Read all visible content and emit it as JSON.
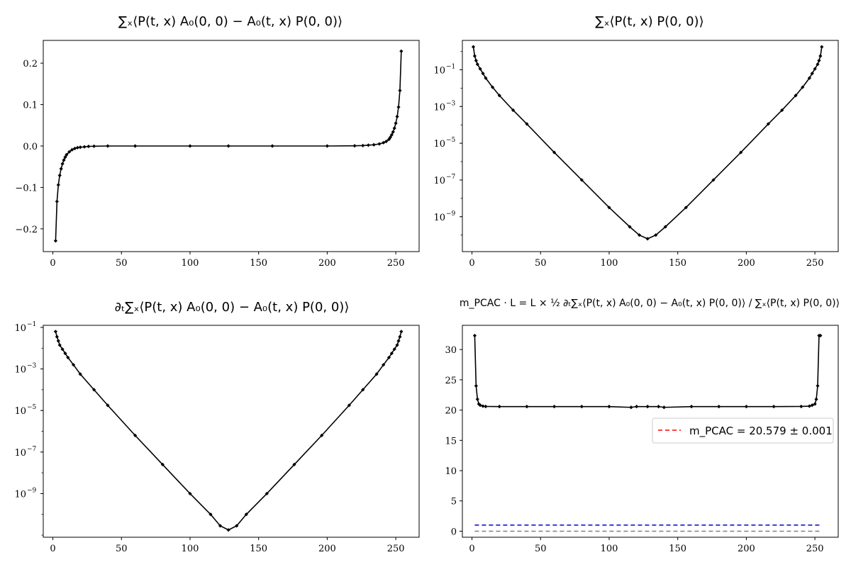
{
  "chart_data": [
    {
      "type": "line",
      "title": "∑ₓ⟨P(t, x) A₀(0, 0) − A₀(t, x) P(0, 0)⟩",
      "xlim": [
        -7,
        267
      ],
      "ylim": [
        -0.255,
        0.255
      ],
      "yscale": "linear",
      "xticks": [
        0,
        50,
        100,
        150,
        200,
        250
      ],
      "yticks": [
        -0.2,
        -0.1,
        0.0,
        0.1,
        0.2
      ],
      "ytick_labels": [
        "−0.2",
        "−0.1",
        "0.0",
        "0.1",
        "0.2"
      ],
      "series": [
        {
          "color": "#000000",
          "marker": "diamond",
          "x": [
            2,
            3,
            4,
            5,
            6,
            7,
            8,
            9,
            10,
            12,
            14,
            16,
            18,
            20,
            23,
            26,
            30,
            40,
            60,
            100,
            128,
            160,
            200,
            220,
            226,
            230,
            234,
            238,
            241,
            243,
            245,
            246,
            247,
            248,
            249,
            250,
            251,
            252,
            253,
            254
          ],
          "values": [
            -0.229,
            -0.134,
            -0.094,
            -0.071,
            -0.055,
            -0.043,
            -0.034,
            -0.027,
            -0.021,
            -0.014,
            -0.009,
            -0.006,
            -0.004,
            -0.003,
            -0.002,
            -0.001,
            -0.0005,
            0,
            0,
            0,
            0,
            0,
            0,
            0.0005,
            0.001,
            0.002,
            0.003,
            0.005,
            0.008,
            0.011,
            0.016,
            0.021,
            0.027,
            0.034,
            0.043,
            0.055,
            0.071,
            0.094,
            0.134,
            0.229
          ]
        }
      ]
    },
    {
      "type": "line",
      "title": "∑ₓ⟨P(t, x) P(0, 0)⟩",
      "xlim": [
        -7,
        267
      ],
      "ylim_log10": [
        -10.9,
        0.6
      ],
      "yscale": "log",
      "xticks": [
        0,
        50,
        100,
        150,
        200,
        250
      ],
      "yticks_exp": [
        -9,
        -7,
        -5,
        -3,
        -1
      ],
      "series": [
        {
          "color": "#000000",
          "marker": "diamond",
          "x": [
            1,
            2,
            3,
            4,
            6,
            8,
            10,
            15,
            20,
            30,
            40,
            60,
            80,
            100,
            115,
            122,
            128,
            134,
            141,
            156,
            176,
            196,
            216,
            226,
            236,
            241,
            246,
            248,
            250,
            252,
            253,
            254,
            255
          ],
          "values_log10": [
            0.25,
            -0.25,
            -0.5,
            -0.7,
            -0.95,
            -1.2,
            -1.45,
            -1.95,
            -2.4,
            -3.2,
            -3.95,
            -5.5,
            -7.0,
            -8.5,
            -9.55,
            -10.0,
            -10.2,
            -10.0,
            -9.55,
            -8.5,
            -7.0,
            -5.5,
            -3.95,
            -3.2,
            -2.4,
            -1.95,
            -1.45,
            -1.2,
            -0.95,
            -0.7,
            -0.5,
            -0.25,
            0.25
          ]
        }
      ]
    },
    {
      "type": "line",
      "title": "∂ₜ∑ₓ⟨P(t, x) A₀(0, 0) − A₀(t, x) P(0, 0)⟩",
      "xlim": [
        -7,
        267
      ],
      "ylim_log10": [
        -11.1,
        -0.9
      ],
      "yscale": "log",
      "xticks": [
        0,
        50,
        100,
        150,
        200,
        250
      ],
      "yticks_exp": [
        -9,
        -7,
        -5,
        -3,
        -1
      ],
      "series": [
        {
          "color": "#000000",
          "marker": "diamond",
          "x": [
            2,
            3,
            4,
            5,
            7,
            9,
            11,
            15,
            20,
            30,
            40,
            60,
            80,
            100,
            115,
            122,
            128,
            134,
            141,
            156,
            176,
            196,
            216,
            226,
            236,
            241,
            245,
            247,
            249,
            251,
            252,
            253,
            254
          ],
          "values_log10": [
            -1.2,
            -1.45,
            -1.65,
            -1.85,
            -2.05,
            -2.25,
            -2.45,
            -2.8,
            -3.25,
            -4.0,
            -4.75,
            -6.2,
            -7.6,
            -9.0,
            -10.0,
            -10.55,
            -10.75,
            -10.55,
            -10.0,
            -9.0,
            -7.6,
            -6.2,
            -4.75,
            -4.0,
            -3.25,
            -2.8,
            -2.45,
            -2.25,
            -2.05,
            -1.85,
            -1.65,
            -1.45,
            -1.2
          ]
        }
      ]
    },
    {
      "type": "line",
      "title": "m_PCAC · L = L × ½ ∂ₜ∑ₓ⟨P(t, x) A₀(0, 0) − A₀(t, x) P(0, 0)⟩ / ∑ₓ⟨P(t, x) P(0, 0)⟩",
      "xlim": [
        -7,
        267
      ],
      "ylim": [
        -1.0,
        34.0
      ],
      "yscale": "linear",
      "xticks": [
        0,
        50,
        100,
        150,
        200,
        250
      ],
      "yticks": [
        0,
        5,
        10,
        15,
        20,
        25,
        30
      ],
      "series": [
        {
          "color": "#000000",
          "marker": "diamond",
          "x": [
            2,
            3,
            4,
            5,
            6,
            8,
            10,
            20,
            40,
            60,
            80,
            100,
            116,
            120,
            128,
            136,
            140,
            160,
            180,
            200,
            220,
            240,
            246,
            248,
            250,
            251,
            252,
            253,
            254
          ],
          "values": [
            32.3,
            24.0,
            21.8,
            21.0,
            20.8,
            20.65,
            20.6,
            20.58,
            20.58,
            20.58,
            20.58,
            20.58,
            20.45,
            20.58,
            20.58,
            20.58,
            20.45,
            20.58,
            20.58,
            20.58,
            20.58,
            20.6,
            20.65,
            20.8,
            21.0,
            21.8,
            24.0,
            32.3,
            32.3
          ]
        }
      ],
      "reference_lines": [
        {
          "color": "#ff0000",
          "style": "dashed",
          "y": 20.579,
          "label": "m_PCAC = 20.579 ± 0.001"
        },
        {
          "color": "#0000cc",
          "style": "dashed",
          "y": 1.0,
          "x_range": [
            2,
            254
          ]
        },
        {
          "color": "#808080",
          "style": "dashed",
          "y": 0.0,
          "x_range": [
            2,
            254
          ]
        }
      ],
      "legend": "right"
    }
  ]
}
